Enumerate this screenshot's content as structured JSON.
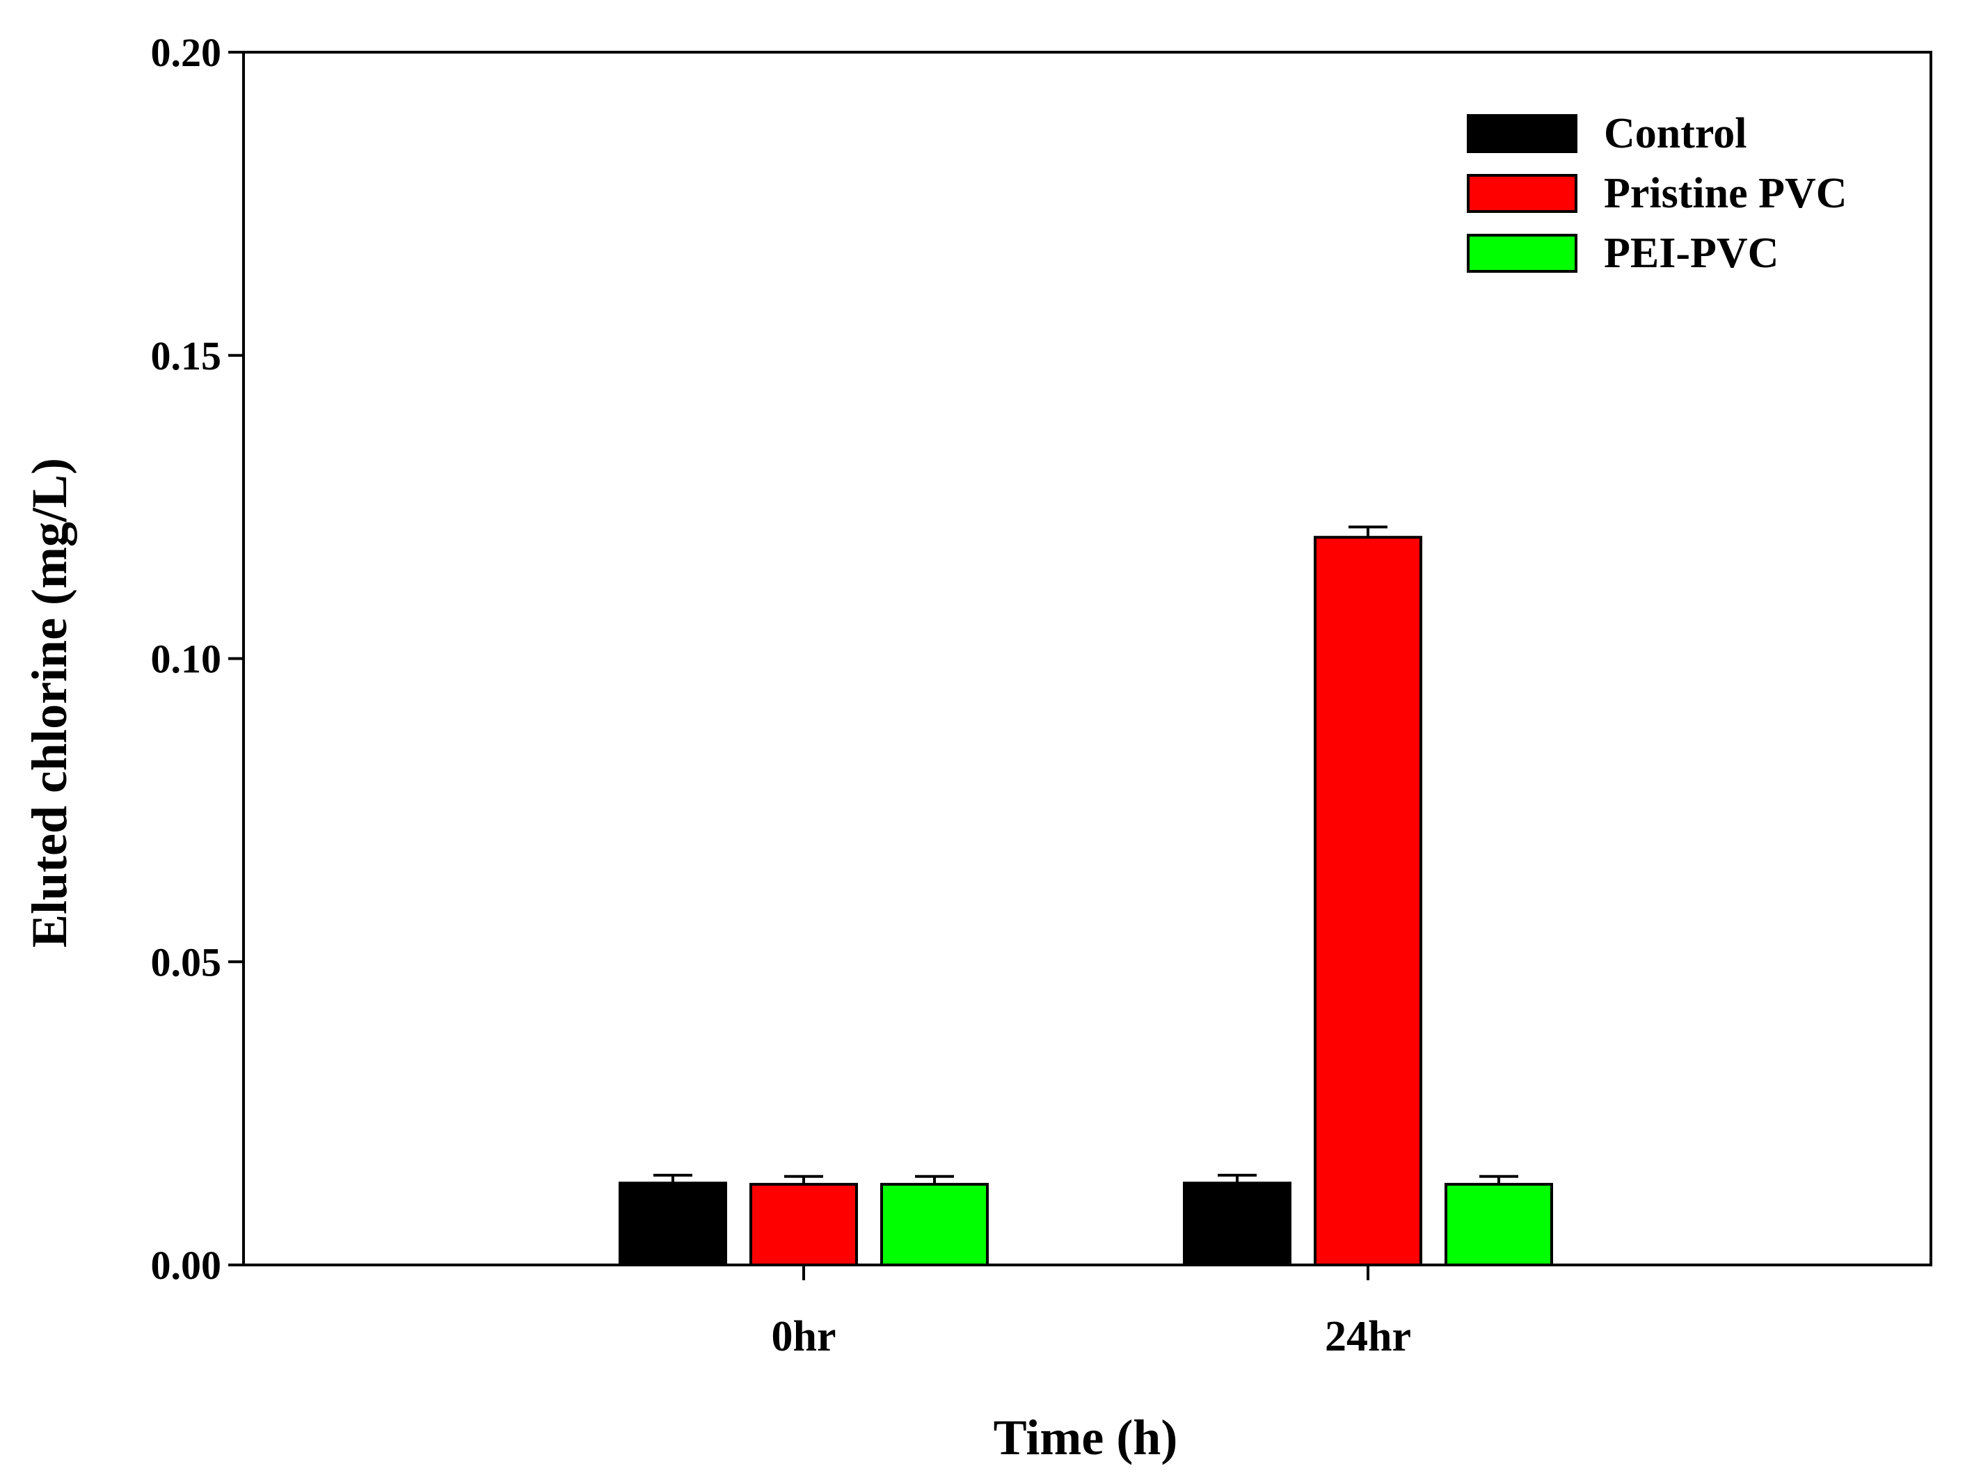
{
  "chart_data": {
    "type": "bar",
    "title": "",
    "xlabel": "Time (h)",
    "ylabel": "Eluted chlorine (mg/L)",
    "ylim": [
      0,
      0.2
    ],
    "yticks": [
      "0.00",
      "0.05",
      "0.10",
      "0.15",
      "0.20"
    ],
    "ytick_values": [
      0,
      0.05,
      0.1,
      0.15,
      0.2
    ],
    "categories": [
      "0hr",
      "24hr"
    ],
    "series": [
      {
        "name": "Control",
        "color": "#000000",
        "values": [
          0.0135,
          0.0135
        ],
        "errors": [
          0.0013,
          0.0013
        ]
      },
      {
        "name": "Pristine PVC",
        "color": "#ff0000",
        "values": [
          0.0133,
          0.12
        ],
        "errors": [
          0.0013,
          0.0017
        ]
      },
      {
        "name": "PEI-PVC",
        "color": "#00ff00",
        "values": [
          0.0133,
          0.0133
        ],
        "errors": [
          0.0013,
          0.0013
        ]
      }
    ],
    "legend_position": "top-right",
    "grid": false
  }
}
